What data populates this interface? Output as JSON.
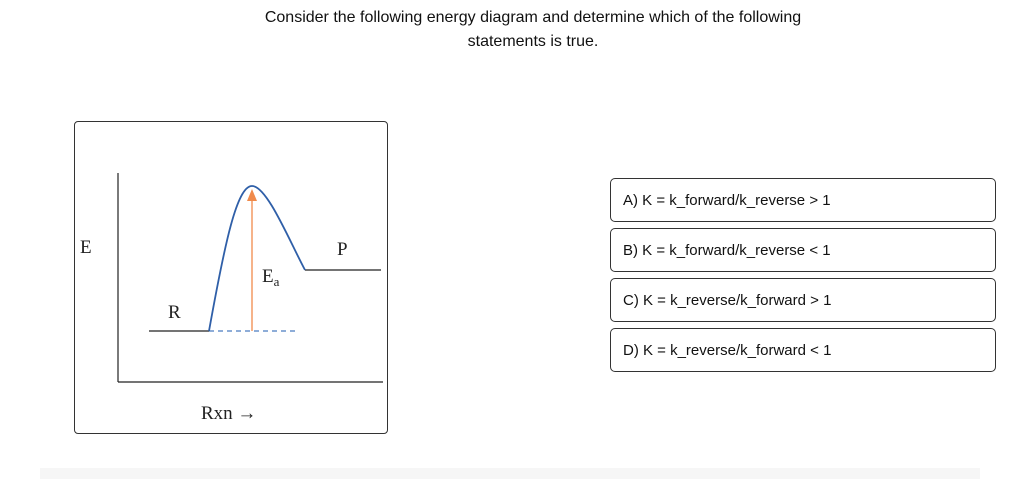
{
  "question": {
    "line1": "Consider the following energy diagram and determine which of the following",
    "line2": "statements is true."
  },
  "diagram": {
    "y_axis_label": "E",
    "x_axis_label": "Rxn →",
    "reactant_label": "R",
    "product_label": "P",
    "activation_label": "E",
    "activation_subscript": "a",
    "colors": {
      "curve": "#2f5fa8",
      "activation_arrow": "#f08a4b",
      "dashed_line": "#4a7cc0",
      "axes": "#222222"
    }
  },
  "options": [
    {
      "label": "A) K = k_forward/k_reverse > 1"
    },
    {
      "label": "B) K = k_forward/k_reverse < 1"
    },
    {
      "label": "C) K = k_reverse/k_forward > 1"
    },
    {
      "label": "D) K = k_reverse/k_forward < 1"
    }
  ]
}
